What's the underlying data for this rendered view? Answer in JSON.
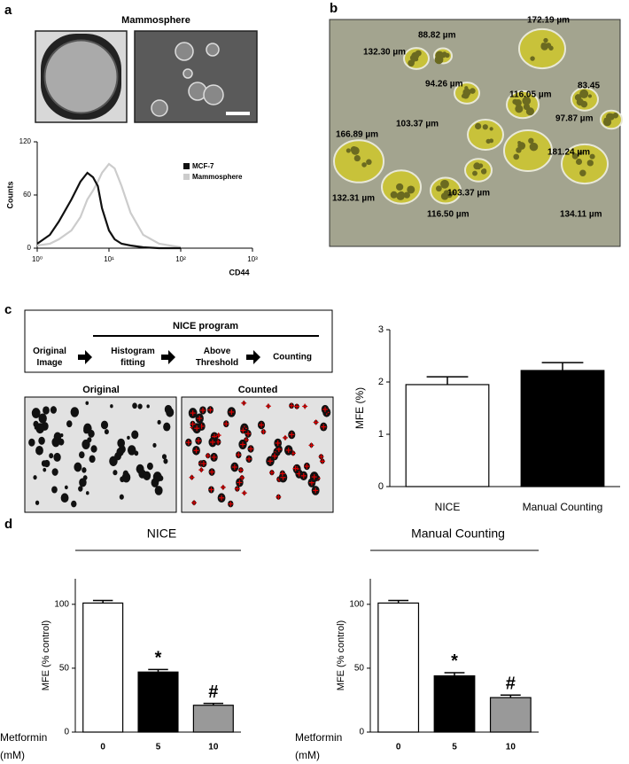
{
  "panels": [
    "a",
    "b",
    "c",
    "d"
  ],
  "panel_a": {
    "title": "Mammosphere"
  },
  "panel_b": {
    "measurements": [
      "132.30 µm",
      "88.82 µm",
      "172.19 µm",
      "94.26 µm",
      "116.05 µm",
      "83.45",
      "103.37 µm",
      "97.87 µm",
      "166.89 µm",
      "181.24 µm",
      "132.31 µm",
      "103.37 µm",
      "116.50 µm",
      "134.11 µm"
    ]
  },
  "panel_c": {
    "program": "NICE program",
    "steps": [
      [
        "Original",
        "Image"
      ],
      [
        "Histogram",
        "fitting"
      ],
      [
        "Above",
        "Threshold"
      ],
      [
        "Counting"
      ]
    ],
    "images": [
      "Original",
      "Counted"
    ]
  },
  "chart_data": [
    {
      "type": "line",
      "ylabel": "Counts",
      "xlabel": "CD44",
      "xscale": "log",
      "x": [
        1,
        1.5,
        2,
        3,
        4,
        5,
        6,
        7,
        8,
        10,
        12,
        15,
        20,
        30,
        50,
        100
      ],
      "series": [
        {
          "name": "MCF-7",
          "color": "#111111",
          "values": [
            5,
            15,
            30,
            55,
            75,
            85,
            80,
            70,
            45,
            20,
            10,
            5,
            3,
            1,
            0,
            0
          ]
        },
        {
          "name": "Mammosphere",
          "color": "#cccccc",
          "values": [
            3,
            5,
            10,
            20,
            35,
            55,
            65,
            75,
            85,
            95,
            90,
            70,
            40,
            15,
            5,
            1
          ]
        }
      ],
      "xlim": [
        1,
        1000
      ],
      "xticks": [
        {
          "value": 1,
          "label": "10⁰"
        },
        {
          "value": 10,
          "label": "10¹"
        },
        {
          "value": 100,
          "label": "10²"
        },
        {
          "value": 1000,
          "label": "10³"
        }
      ],
      "ylim": [
        0,
        120
      ],
      "yticks": [
        0,
        60,
        120
      ],
      "legend": "upper right"
    },
    {
      "type": "bar",
      "ylabel": "MFE (%)",
      "categories": [
        "NICE",
        "Manual Counting"
      ],
      "values": [
        1.95,
        2.22
      ],
      "errors": [
        0.15,
        0.15
      ],
      "colors": [
        "#ffffff",
        "#000000"
      ],
      "ylim": [
        0,
        3
      ],
      "yticks": [
        0,
        1,
        2,
        3
      ]
    },
    {
      "type": "bar",
      "title": "NICE",
      "ylabel": "MFE (% control)",
      "xlabel": [
        "Metformin",
        "(mM)"
      ],
      "categories": [
        "0",
        "5",
        "10"
      ],
      "values": [
        101,
        47,
        21
      ],
      "errors": [
        2,
        2,
        1.5
      ],
      "colors": [
        "#ffffff",
        "#000000",
        "#999999"
      ],
      "annotations": [
        null,
        "*",
        "#"
      ],
      "ylim": [
        0,
        120
      ],
      "yticks": [
        0,
        50,
        100
      ]
    },
    {
      "type": "bar",
      "title": "Manual Counting",
      "ylabel": "MFE (% control)",
      "xlabel": [
        "Metformin",
        "(mM)"
      ],
      "categories": [
        "0",
        "5",
        "10"
      ],
      "values": [
        101,
        44,
        27
      ],
      "errors": [
        2,
        2.5,
        2
      ],
      "colors": [
        "#ffffff",
        "#000000",
        "#999999"
      ],
      "annotations": [
        null,
        "*",
        "#"
      ],
      "ylim": [
        0,
        120
      ],
      "yticks": [
        0,
        50,
        100
      ]
    }
  ]
}
